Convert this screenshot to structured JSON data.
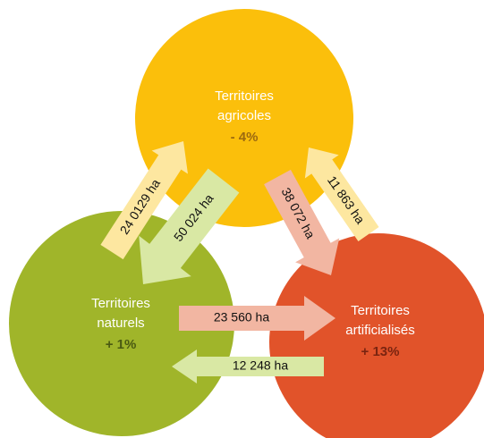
{
  "nodes": [
    {
      "label": [
        "Territoires",
        "agricoles"
      ],
      "change": "- 4%"
    },
    {
      "label": [
        "Territoires",
        "naturels"
      ],
      "change": "+ 1%"
    },
    {
      "label": [
        "Territoires",
        "artificialisés"
      ],
      "change": "+ 13%"
    }
  ],
  "flows": [
    {
      "label": "24 0129 ha"
    },
    {
      "label": "50 024 ha"
    },
    {
      "label": "38 072 ha"
    },
    {
      "label": "11 863 ha"
    },
    {
      "label": "23 560 ha"
    },
    {
      "label": "12 248 ha"
    }
  ]
}
